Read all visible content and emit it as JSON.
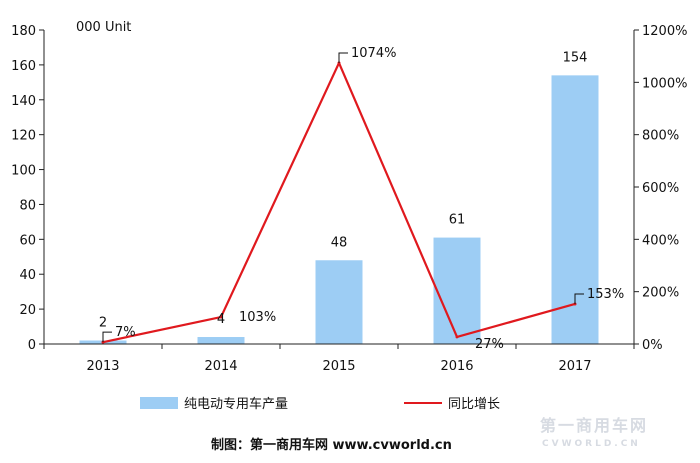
{
  "chart_data": {
    "type": "bar",
    "unit_label": "000 Unit",
    "categories": [
      "2013",
      "2014",
      "2015",
      "2016",
      "2017"
    ],
    "series": [
      {
        "name": "纯电动专用车产量",
        "type": "bar",
        "axis": "left",
        "values": [
          2,
          4,
          48,
          61,
          154
        ],
        "labels": [
          "2",
          "4",
          "48",
          "61",
          "154"
        ],
        "color": "#9dcdf4"
      },
      {
        "name": "同比增长",
        "type": "line",
        "axis": "right",
        "values": [
          7,
          103,
          1074,
          27,
          153
        ],
        "labels": [
          "7%",
          "103%",
          "1074%",
          "27%",
          "153%"
        ],
        "color": "#e0191e"
      }
    ],
    "y_left": {
      "min": 0,
      "max": 180,
      "step": 20,
      "ticks": [
        "0",
        "20",
        "40",
        "60",
        "80",
        "100",
        "120",
        "140",
        "160",
        "180"
      ]
    },
    "y_right": {
      "min": 0,
      "max": 1200,
      "step": 200,
      "ticks": [
        "0%",
        "200%",
        "400%",
        "600%",
        "800%",
        "1000%",
        "1200%"
      ]
    },
    "legend_position": "bottom",
    "grid": false
  },
  "source": "制图：第一商用车网 www.cvworld.cn",
  "watermark": {
    "main": "第一商用车网",
    "sub": "CVWORLD.CN"
  }
}
